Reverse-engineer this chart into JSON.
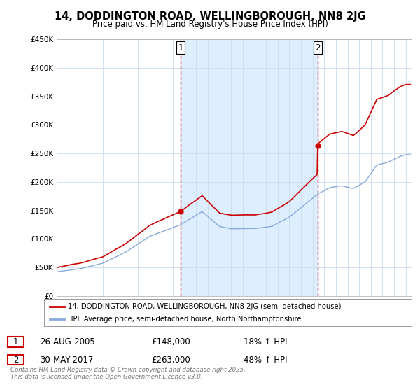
{
  "title": "14, DODDINGTON ROAD, WELLINGBOROUGH, NN8 2JG",
  "subtitle": "Price paid vs. HM Land Registry's House Price Index (HPI)",
  "legend_line1": "14, DODDINGTON ROAD, WELLINGBOROUGH, NN8 2JG (semi-detached house)",
  "legend_line2": "HPI: Average price, semi-detached house, North Northamptonshire",
  "transaction1_date": "26-AUG-2005",
  "transaction1_price": "£148,000",
  "transaction1_hpi": "18% ↑ HPI",
  "transaction2_date": "30-MAY-2017",
  "transaction2_price": "£263,000",
  "transaction2_hpi": "48% ↑ HPI",
  "footer": "Contains HM Land Registry data © Crown copyright and database right 2025.\nThis data is licensed under the Open Government Licence v3.0.",
  "xlim_start": 1995,
  "xlim_end": 2025.5,
  "ylim_min": 0,
  "ylim_max": 450000,
  "sale1_year": 2005.65,
  "sale1_price": 148000,
  "sale2_year": 2017.42,
  "sale2_price": 263000,
  "bg_color": "#ffffff",
  "plot_bg_color": "#ffffff",
  "shade_color": "#ddeeff",
  "red_color": "#cc0000",
  "blue_color": "#88aadd",
  "dashed_color": "#cc0000"
}
